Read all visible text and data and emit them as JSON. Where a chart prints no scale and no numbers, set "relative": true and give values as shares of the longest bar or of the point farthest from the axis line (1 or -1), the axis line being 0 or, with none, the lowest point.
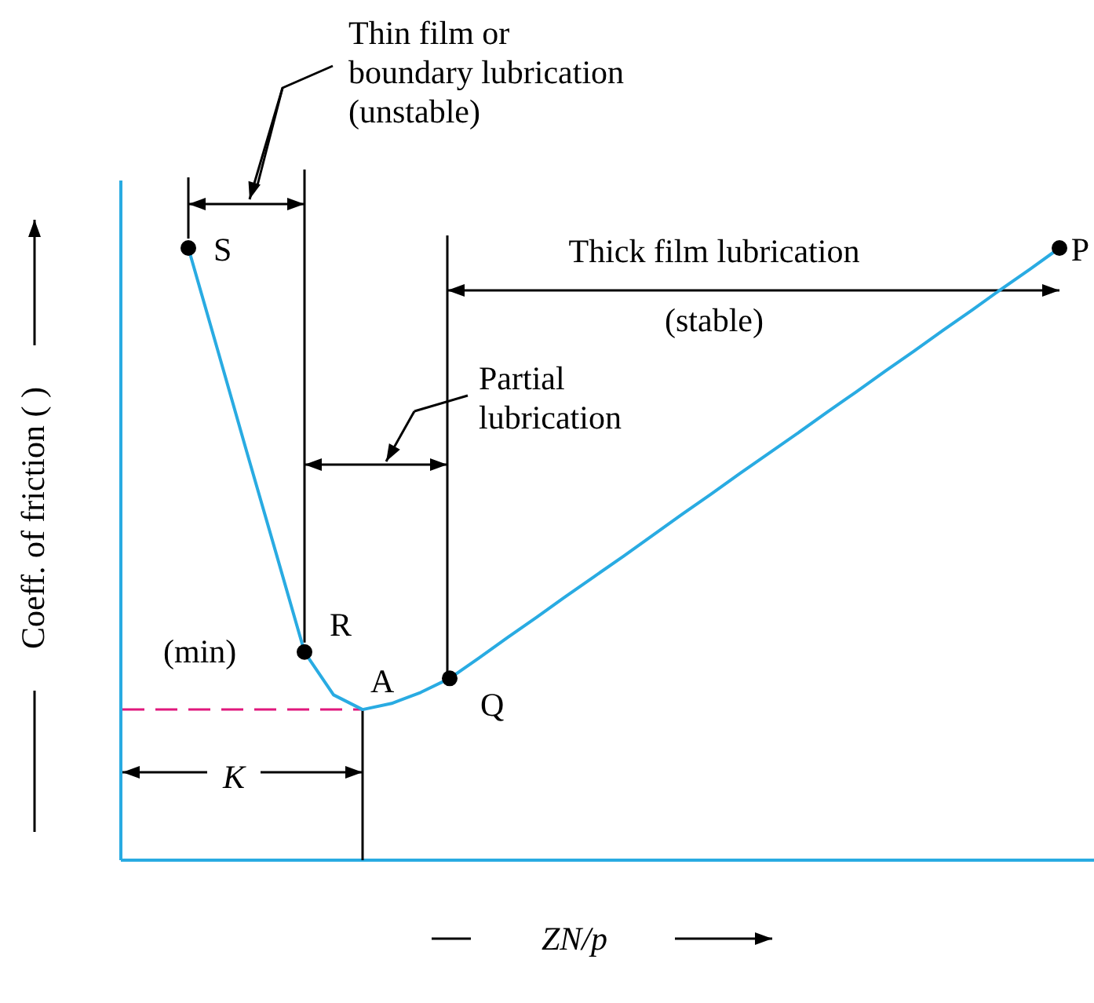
{
  "chart_data": {
    "type": "line",
    "relative": true,
    "xlabel": "ZN/p",
    "ylabel": "Coeff. of friction ( )",
    "categories": [
      null,
      null,
      null,
      null,
      null,
      null,
      null,
      null,
      null,
      null,
      null,
      null,
      null,
      null,
      null,
      null,
      null,
      null,
      null,
      null,
      null,
      null,
      null,
      null,
      null,
      null,
      null,
      null,
      null,
      null,
      null
    ],
    "series": [
      {
        "color": "#29abe2",
        "values": [
          1.0,
          0.835,
          0.669,
          0.505,
          0.34,
          0.27,
          0.246,
          0.256,
          0.274,
          0.297,
          0.33,
          0.364,
          0.397,
          0.431,
          0.464,
          0.497,
          0.531,
          0.565,
          0.598,
          0.632,
          0.665,
          0.698,
          0.732,
          0.765,
          0.799,
          0.832,
          0.866,
          0.899,
          0.933,
          0.966,
          1.0
        ]
      }
    ],
    "ref_lines": [
      {
        "axis": "y",
        "value": 0.246,
        "color": "#e0177c",
        "line_style": "dashed"
      }
    ],
    "annotations": [
      "S",
      "R",
      "(min)",
      "A",
      "Q",
      "P",
      "Thin film or\nboundary lubrication\n(unstable)",
      "Partial\nlubrication",
      "Thick film lubrication\n(stable)",
      "K"
    ],
    "grid": false
  }
}
